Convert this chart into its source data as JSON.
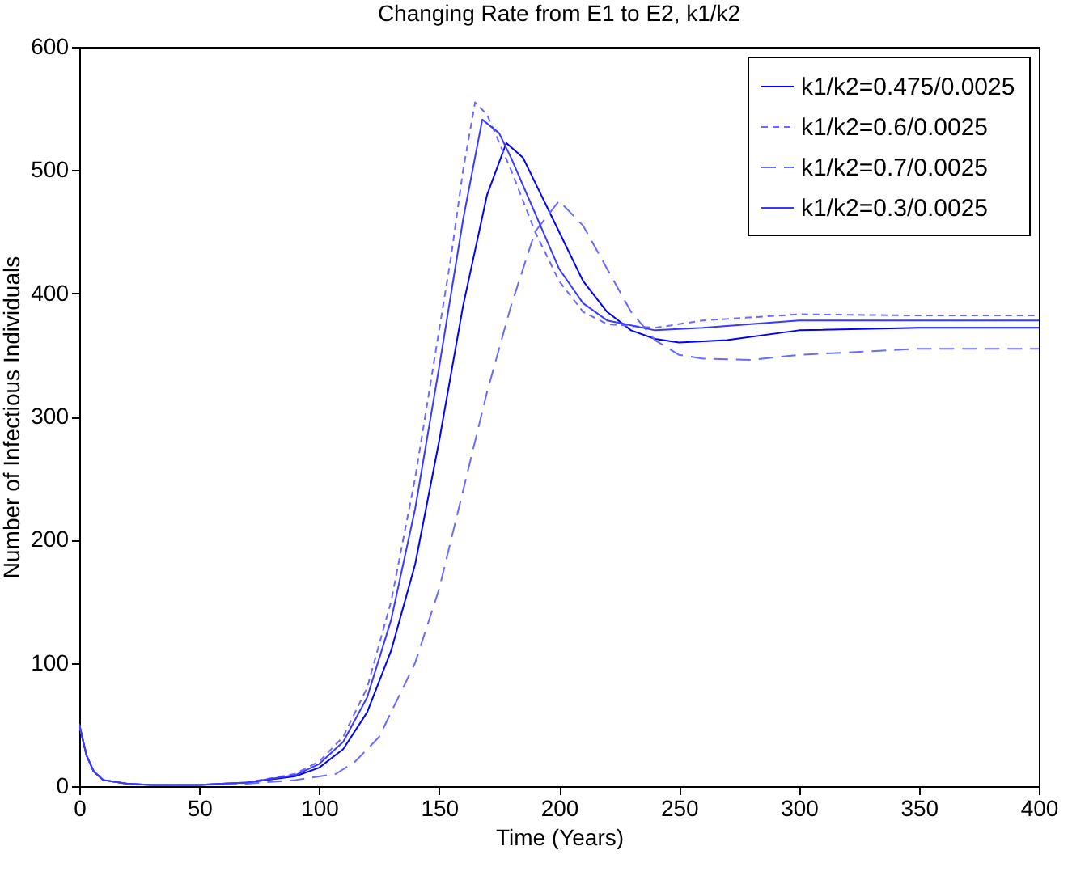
{
  "chart_data": {
    "type": "line",
    "title": "Changing Rate from E1 to E2, k1/k2",
    "xlabel": "Time (Years)",
    "ylabel": "Number of Infectious Individuals",
    "xlim": [
      0,
      400
    ],
    "xticks": [
      0,
      50,
      100,
      150,
      200,
      250,
      300,
      350,
      400
    ],
    "ylim": [
      0,
      600
    ],
    "yticks": [
      0,
      100,
      200,
      300,
      400,
      500,
      600
    ],
    "grid": false,
    "legend": "top right",
    "series": [
      {
        "name": "k1/k2=0.475/0.0025",
        "color": "#0000ff",
        "line_style": "solid",
        "x": [
          0,
          3,
          6,
          10,
          20,
          30,
          50,
          70,
          90,
          100,
          110,
          120,
          130,
          140,
          150,
          160,
          170,
          178,
          185,
          190,
          200,
          210,
          220,
          230,
          240,
          250,
          270,
          300,
          350,
          400
        ],
        "values": [
          50,
          25,
          12,
          5,
          2,
          1,
          1,
          3,
          8,
          15,
          30,
          60,
          110,
          180,
          280,
          390,
          480,
          522,
          510,
          490,
          450,
          410,
          385,
          370,
          363,
          360,
          362,
          370,
          372,
          372
        ]
      },
      {
        "name": "k1/k2=0.6/0.0025",
        "color": "#6a6aff",
        "line_style": "dotted",
        "x": [
          0,
          3,
          6,
          10,
          20,
          30,
          50,
          70,
          90,
          100,
          110,
          120,
          130,
          140,
          150,
          155,
          160,
          165,
          170,
          180,
          190,
          200,
          210,
          220,
          240,
          260,
          300,
          350,
          400
        ],
        "values": [
          50,
          25,
          12,
          5,
          2,
          1,
          1,
          3,
          10,
          20,
          40,
          80,
          150,
          250,
          370,
          430,
          500,
          555,
          545,
          500,
          450,
          410,
          385,
          375,
          372,
          378,
          383,
          382,
          382
        ]
      },
      {
        "name": "k1/k2=0.7/0.0025",
        "color": "#6a6aff",
        "line_style": "dashed",
        "x": [
          0,
          3,
          6,
          10,
          20,
          30,
          50,
          70,
          90,
          107,
          115,
          125,
          140,
          150,
          160,
          170,
          180,
          190,
          200,
          210,
          220,
          230,
          240,
          250,
          260,
          280,
          300,
          350,
          400
        ],
        "values": [
          50,
          25,
          12,
          5,
          2,
          1,
          1,
          2,
          5,
          10,
          20,
          40,
          100,
          160,
          240,
          320,
          390,
          450,
          475,
          455,
          420,
          385,
          362,
          350,
          347,
          346,
          350,
          355,
          355
        ]
      },
      {
        "name": "k1/k2=0.3/0.0025",
        "color": "#3a3aff",
        "line_style": "solid",
        "x": [
          0,
          3,
          6,
          10,
          20,
          30,
          50,
          70,
          90,
          100,
          110,
          120,
          130,
          140,
          150,
          160,
          168,
          175,
          180,
          190,
          200,
          210,
          220,
          240,
          260,
          300,
          350,
          400
        ],
        "values": [
          50,
          25,
          12,
          5,
          2,
          1,
          1,
          3,
          9,
          18,
          36,
          72,
          135,
          225,
          340,
          460,
          541,
          530,
          510,
          465,
          420,
          392,
          378,
          370,
          372,
          378,
          378,
          378
        ]
      }
    ]
  }
}
